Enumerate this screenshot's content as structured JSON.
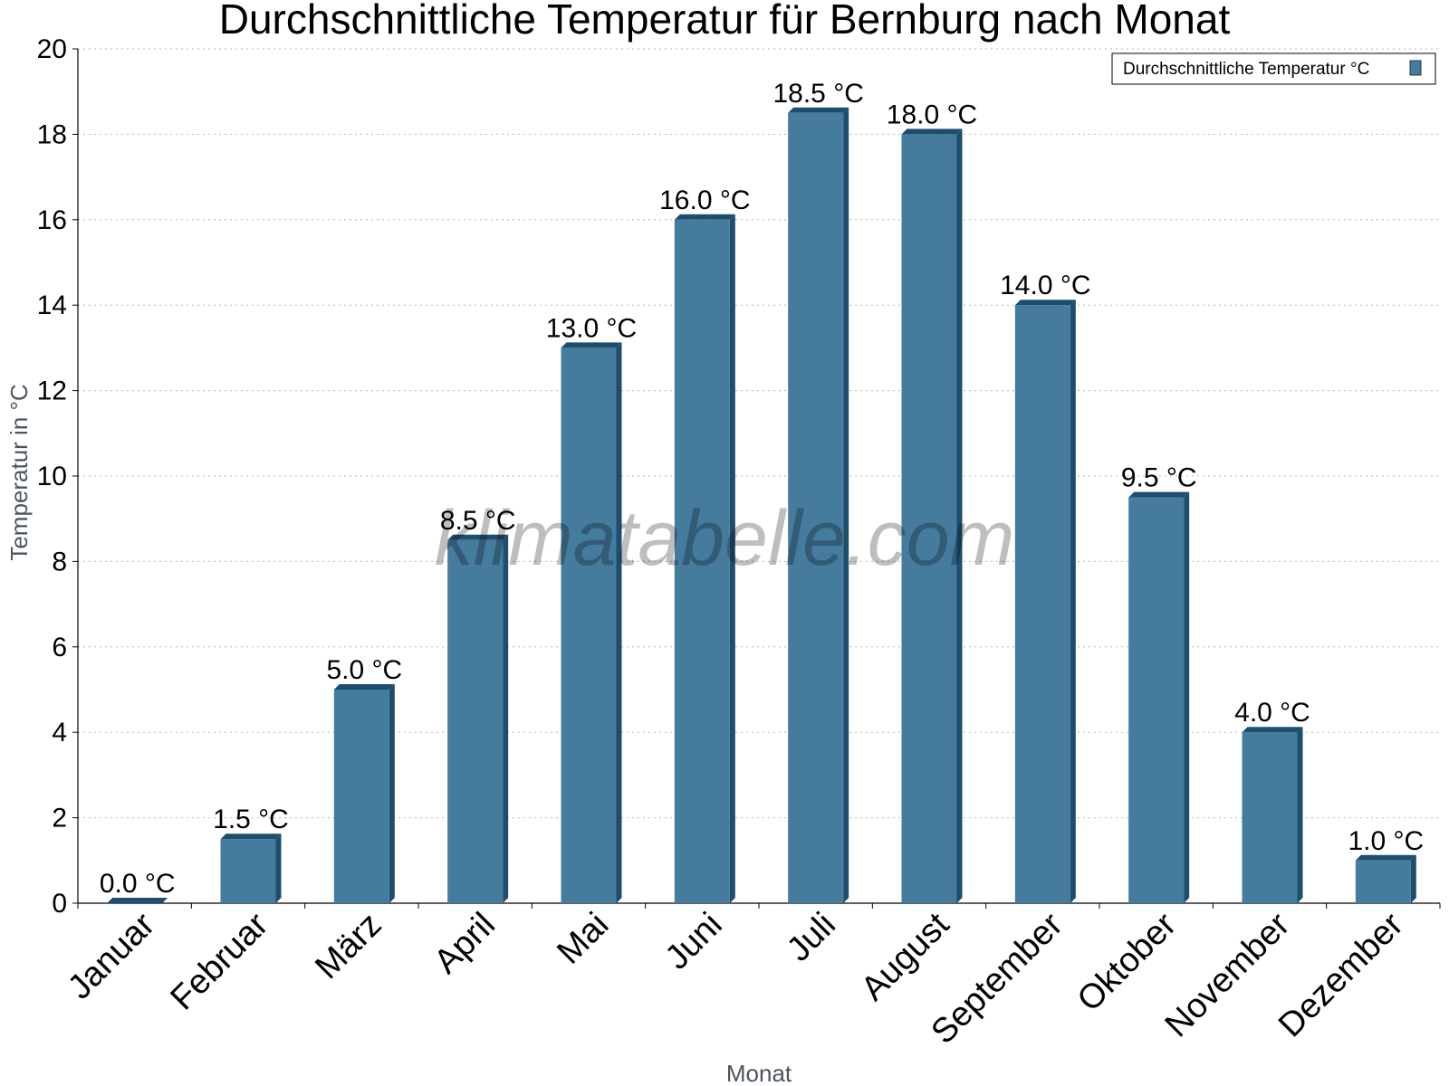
{
  "chart_data": {
    "type": "bar",
    "title": "Durchschnittliche Temperatur für Bernburg nach Monat",
    "xlabel": "Monat",
    "ylabel": "Temperatur in °C",
    "categories": [
      "Januar",
      "Februar",
      "März",
      "April",
      "Mai",
      "Juni",
      "Juli",
      "August",
      "September",
      "Oktober",
      "November",
      "Dezember"
    ],
    "series": [
      {
        "name": "Durchschnittliche Temperatur °C",
        "values": [
          0.0,
          1.5,
          5.0,
          8.5,
          13.0,
          16.0,
          18.5,
          18.0,
          14.0,
          9.5,
          4.0,
          1.0
        ],
        "labels": [
          "0.0 °C",
          "1.5 °C",
          "5.0 °C",
          "8.5 °C",
          "13.0 °C",
          "16.0 °C",
          "18.5 °C",
          "18.0 °C",
          "14.0 °C",
          "9.5 °C",
          "4.0 °C",
          "1.0 °C"
        ]
      }
    ],
    "ylim": [
      0,
      20
    ],
    "yticks": [
      "0",
      "2",
      "4",
      "6",
      "8",
      "10",
      "12",
      "14",
      "16",
      "18",
      "20"
    ],
    "grid": true,
    "legend_position": "top-right",
    "colors": {
      "bar": "#457b9d",
      "bar_shade": "#1d4e6f"
    },
    "watermark": "klimatabelle.com"
  }
}
